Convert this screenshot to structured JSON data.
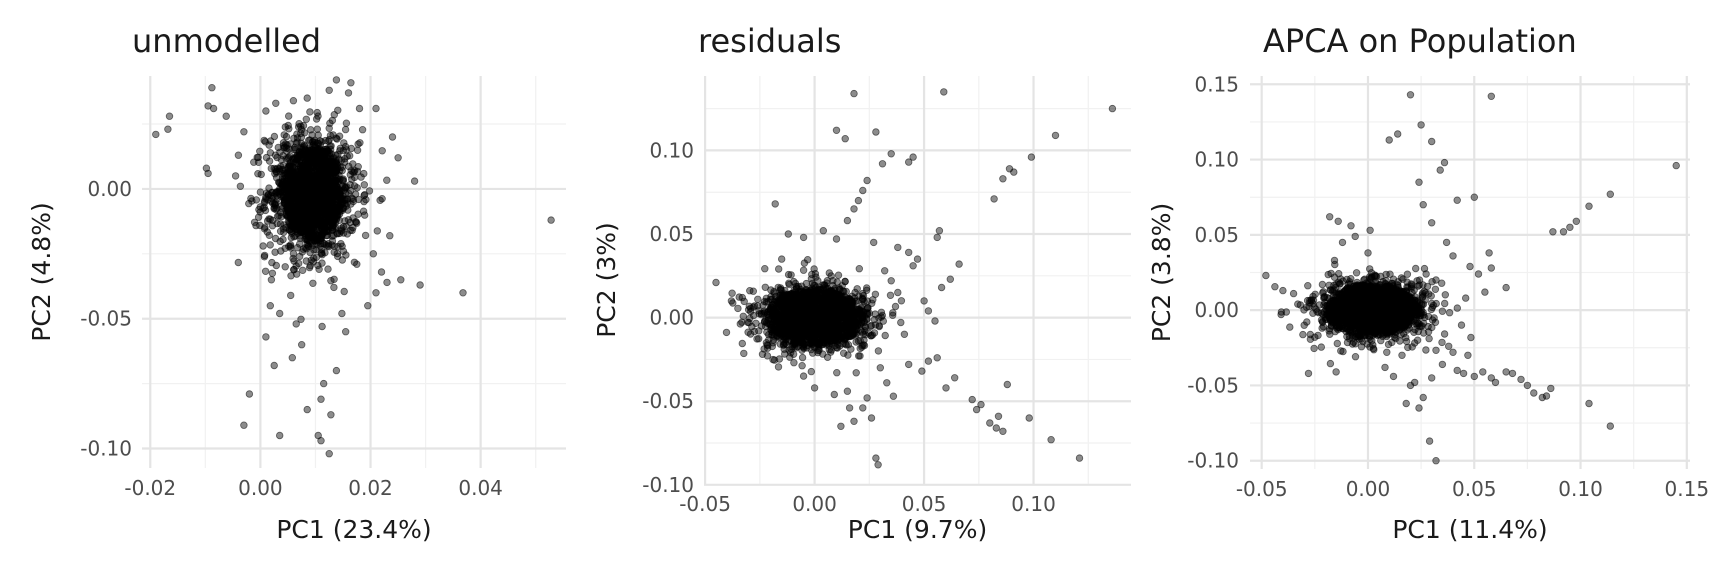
{
  "chart_data": [
    {
      "type": "scatter",
      "title": "unmodelled",
      "xlabel": "PC1 (23.4%)",
      "ylabel": "PC2 (4.8%)",
      "xlim": [
        -0.0215,
        0.0555
      ],
      "ylim": [
        -0.1075,
        0.0435
      ],
      "x_ticks": [
        -0.02,
        0.0,
        0.02,
        0.04
      ],
      "x_tick_labels": [
        "-0.02",
        "0.00",
        "0.02",
        "0.04"
      ],
      "y_ticks": [
        -0.1,
        -0.05,
        0.0
      ],
      "y_tick_labels": [
        "-0.10",
        "-0.05",
        "0.00"
      ],
      "grid": true,
      "cluster": {
        "center": [
          0.0095,
          -0.002
        ],
        "spread": [
          0.0042,
          0.0125
        ],
        "n": 1800,
        "core_radius": [
          0.0055,
          0.018
        ]
      },
      "points": [
        [
          -0.019,
          0.021
        ],
        [
          -0.0165,
          0.028
        ],
        [
          -0.0168,
          0.023
        ],
        [
          -0.0088,
          0.039
        ],
        [
          -0.0095,
          0.032
        ],
        [
          -0.0085,
          0.031
        ],
        [
          -0.0098,
          0.008
        ],
        [
          -0.0095,
          0.006
        ],
        [
          -0.0062,
          0.028
        ],
        [
          -0.003,
          0.022
        ],
        [
          -0.004,
          0.013
        ],
        [
          -0.0045,
          0.005
        ],
        [
          0.001,
          -0.057
        ],
        [
          0.0025,
          -0.068
        ],
        [
          -0.002,
          -0.079
        ],
        [
          -0.003,
          -0.091
        ],
        [
          0.0035,
          -0.095
        ],
        [
          0.0105,
          -0.095
        ],
        [
          0.011,
          -0.097
        ],
        [
          0.0125,
          -0.102
        ],
        [
          0.011,
          -0.081
        ],
        [
          0.0085,
          -0.085
        ],
        [
          0.0128,
          -0.087
        ],
        [
          0.0058,
          -0.065
        ],
        [
          0.0075,
          -0.06
        ],
        [
          0.0115,
          -0.075
        ],
        [
          0.0138,
          -0.07
        ],
        [
          0.0155,
          -0.055
        ],
        [
          0.0148,
          -0.048
        ],
        [
          0.0112,
          -0.053
        ],
        [
          0.0065,
          -0.052
        ],
        [
          0.0035,
          -0.048
        ],
        [
          0.0018,
          -0.045
        ],
        [
          0.0195,
          -0.045
        ],
        [
          0.021,
          -0.04
        ],
        [
          0.023,
          -0.036
        ],
        [
          0.022,
          -0.032
        ],
        [
          0.0255,
          -0.035
        ],
        [
          0.029,
          -0.037
        ],
        [
          0.0368,
          -0.04
        ],
        [
          0.0528,
          -0.012
        ],
        [
          0.028,
          0.003
        ],
        [
          0.025,
          0.012
        ],
        [
          0.024,
          0.02
        ],
        [
          0.021,
          0.031
        ],
        [
          0.018,
          0.031
        ],
        [
          0.0138,
          0.042
        ],
        [
          0.0125,
          0.038
        ],
        [
          0.0085,
          0.035
        ],
        [
          0.006,
          0.034
        ],
        [
          0.0028,
          0.033
        ],
        [
          0.001,
          0.03
        ],
        [
          0.016,
          0.037
        ],
        [
          0.0205,
          -0.025
        ],
        [
          0.002,
          -0.035
        ],
        [
          0.0045,
          -0.03
        ],
        [
          0.0175,
          -0.029
        ],
        [
          0.0005,
          -0.022
        ],
        [
          0.0235,
          -0.018
        ],
        [
          0.0055,
          -0.041
        ]
      ]
    },
    {
      "type": "scatter",
      "title": "residuals",
      "xlabel": "PC1 (9.7%)",
      "ylabel": "PC2 (3%)",
      "xlim": [
        -0.0505,
        0.1445
      ],
      "ylim": [
        -0.0995,
        0.1445
      ],
      "x_ticks": [
        -0.05,
        0.0,
        0.05,
        0.1
      ],
      "x_tick_labels": [
        "-0.05",
        "0.00",
        "0.05",
        "0.10"
      ],
      "y_ticks": [
        -0.1,
        -0.05,
        0.0,
        0.05,
        0.1
      ],
      "y_tick_labels": [
        "-0.10",
        "-0.05",
        "0.00",
        "0.05",
        "0.10"
      ],
      "grid": true,
      "cluster": {
        "center": [
          0.0,
          0.0
        ],
        "spread": [
          0.0135,
          0.0105
        ],
        "n": 1800,
        "core_radius": [
          0.022,
          0.017
        ]
      },
      "points": [
        [
          -0.045,
          0.021
        ],
        [
          -0.038,
          0.01
        ],
        [
          -0.033,
          0.012
        ],
        [
          -0.03,
          -0.003
        ],
        [
          -0.026,
          0.007
        ],
        [
          -0.022,
          -0.015
        ],
        [
          -0.018,
          0.068
        ],
        [
          -0.015,
          0.035
        ],
        [
          -0.012,
          0.05
        ],
        [
          -0.005,
          0.048
        ],
        [
          0.004,
          0.052
        ],
        [
          0.01,
          0.047
        ],
        [
          0.015,
          0.058
        ],
        [
          0.018,
          0.065
        ],
        [
          0.02,
          0.07
        ],
        [
          0.022,
          0.076
        ],
        [
          0.024,
          0.082
        ],
        [
          0.01,
          0.112
        ],
        [
          0.014,
          0.107
        ],
        [
          0.018,
          0.134
        ],
        [
          0.028,
          0.111
        ],
        [
          0.031,
          0.092
        ],
        [
          0.035,
          0.098
        ],
        [
          0.043,
          0.093
        ],
        [
          0.045,
          0.096
        ],
        [
          0.059,
          0.135
        ],
        [
          0.082,
          0.071
        ],
        [
          0.086,
          0.083
        ],
        [
          0.089,
          0.089
        ],
        [
          0.091,
          0.087
        ],
        [
          0.099,
          0.096
        ],
        [
          0.11,
          0.109
        ],
        [
          0.136,
          0.125
        ],
        [
          0.057,
          0.052
        ],
        [
          0.056,
          0.048
        ],
        [
          0.043,
          0.039
        ],
        [
          0.045,
          0.031
        ],
        [
          0.047,
          0.035
        ],
        [
          0.062,
          0.023
        ],
        [
          0.066,
          0.032
        ],
        [
          0.035,
          0.022
        ],
        [
          0.038,
          0.015
        ],
        [
          0.05,
          0.01
        ],
        [
          0.052,
          0.004
        ],
        [
          0.055,
          -0.002
        ],
        [
          0.058,
          0.018
        ],
        [
          0.041,
          -0.01
        ],
        [
          0.043,
          -0.028
        ],
        [
          0.049,
          -0.032
        ],
        [
          0.052,
          -0.026
        ],
        [
          0.056,
          -0.024
        ],
        [
          0.06,
          -0.042
        ],
        [
          0.064,
          -0.036
        ],
        [
          0.072,
          -0.049
        ],
        [
          0.074,
          -0.055
        ],
        [
          0.076,
          -0.052
        ],
        [
          0.08,
          -0.063
        ],
        [
          0.083,
          -0.066
        ],
        [
          0.086,
          -0.068
        ],
        [
          0.084,
          -0.059
        ],
        [
          0.088,
          -0.04
        ],
        [
          0.098,
          -0.06
        ],
        [
          0.108,
          -0.073
        ],
        [
          0.121,
          -0.084
        ],
        [
          0.028,
          -0.084
        ],
        [
          0.029,
          -0.088
        ],
        [
          0.016,
          -0.054
        ],
        [
          0.018,
          -0.062
        ],
        [
          0.022,
          -0.054
        ],
        [
          0.024,
          -0.048
        ],
        [
          0.019,
          -0.033
        ],
        [
          0.03,
          -0.03
        ],
        [
          0.033,
          -0.039
        ],
        [
          0.036,
          -0.047
        ],
        [
          0.026,
          -0.06
        ],
        [
          0.012,
          -0.065
        ],
        [
          0.009,
          -0.046
        ],
        [
          0.015,
          -0.044
        ],
        [
          0.0,
          -0.042
        ],
        [
          -0.005,
          -0.035
        ],
        [
          0.027,
          0.045
        ],
        [
          0.032,
          0.028
        ],
        [
          0.038,
          0.042
        ]
      ]
    },
    {
      "type": "scatter",
      "title": "APCA on Population",
      "xlabel": "PC1 (11.4%)",
      "ylabel": "PC2 (3.8%)",
      "xlim": [
        -0.0555,
        0.1515
      ],
      "ylim": [
        -0.1055,
        0.1555
      ],
      "x_ticks": [
        -0.05,
        0.0,
        0.05,
        0.1,
        0.15
      ],
      "x_tick_labels": [
        "-0.05",
        "0.00",
        "0.05",
        "0.10",
        "0.15"
      ],
      "y_ticks": [
        -0.1,
        -0.05,
        0.0,
        0.05,
        0.1,
        0.15
      ],
      "y_tick_labels": [
        "-0.10",
        "-0.05",
        "0.00",
        "0.05",
        "0.10",
        "0.15"
      ],
      "grid": true,
      "cluster": {
        "center": [
          0.002,
          0.0
        ],
        "spread": [
          0.0135,
          0.0105
        ],
        "n": 1800,
        "core_radius": [
          0.022,
          0.017
        ]
      },
      "points": [
        [
          -0.048,
          0.023
        ],
        [
          -0.04,
          0.013
        ],
        [
          -0.035,
          0.011
        ],
        [
          -0.033,
          0.004
        ],
        [
          -0.03,
          -0.01
        ],
        [
          -0.025,
          -0.018
        ],
        [
          -0.028,
          -0.042
        ],
        [
          -0.015,
          -0.041
        ],
        [
          -0.018,
          0.062
        ],
        [
          -0.014,
          0.059
        ],
        [
          -0.008,
          0.056
        ],
        [
          -0.012,
          0.045
        ],
        [
          -0.006,
          0.049
        ],
        [
          0.001,
          0.053
        ],
        [
          0.0,
          0.038
        ],
        [
          0.01,
          0.113
        ],
        [
          0.014,
          0.117
        ],
        [
          0.02,
          0.143
        ],
        [
          0.025,
          0.123
        ],
        [
          0.03,
          0.112
        ],
        [
          0.034,
          0.093
        ],
        [
          0.036,
          0.098
        ],
        [
          0.042,
          0.073
        ],
        [
          0.05,
          0.075
        ],
        [
          0.058,
          0.142
        ],
        [
          0.024,
          0.085
        ],
        [
          0.026,
          0.07
        ],
        [
          0.03,
          0.058
        ],
        [
          0.037,
          0.045
        ],
        [
          0.04,
          0.036
        ],
        [
          0.048,
          0.029
        ],
        [
          0.052,
          0.024
        ],
        [
          0.057,
          0.038
        ],
        [
          0.058,
          0.028
        ],
        [
          0.065,
          0.015
        ],
        [
          0.055,
          0.012
        ],
        [
          0.046,
          0.008
        ],
        [
          0.087,
          0.052
        ],
        [
          0.092,
          0.052
        ],
        [
          0.095,
          0.055
        ],
        [
          0.098,
          0.059
        ],
        [
          0.104,
          0.069
        ],
        [
          0.114,
          0.077
        ],
        [
          0.145,
          0.096
        ],
        [
          0.029,
          -0.087
        ],
        [
          0.032,
          -0.1
        ],
        [
          0.02,
          -0.05
        ],
        [
          0.018,
          -0.062
        ],
        [
          0.024,
          -0.065
        ],
        [
          0.026,
          -0.058
        ],
        [
          0.022,
          -0.048
        ],
        [
          0.012,
          -0.044
        ],
        [
          0.008,
          -0.038
        ],
        [
          0.03,
          -0.045
        ],
        [
          0.035,
          -0.036
        ],
        [
          0.04,
          -0.028
        ],
        [
          0.042,
          -0.04
        ],
        [
          0.045,
          -0.042
        ],
        [
          0.05,
          -0.044
        ],
        [
          0.054,
          -0.041
        ],
        [
          0.058,
          -0.045
        ],
        [
          0.06,
          -0.048
        ],
        [
          0.065,
          -0.041
        ],
        [
          0.068,
          -0.042
        ],
        [
          0.072,
          -0.046
        ],
        [
          0.075,
          -0.05
        ],
        [
          0.078,
          -0.055
        ],
        [
          0.082,
          -0.058
        ],
        [
          0.086,
          -0.052
        ],
        [
          0.084,
          -0.057
        ],
        [
          0.104,
          -0.062
        ],
        [
          0.114,
          -0.077
        ],
        [
          0.038,
          -0.024
        ],
        [
          0.047,
          -0.03
        ],
        [
          0.016,
          -0.03
        ]
      ]
    }
  ]
}
